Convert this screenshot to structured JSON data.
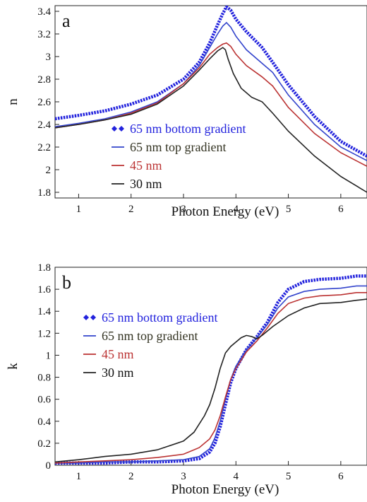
{
  "chart_data": [
    {
      "type": "line",
      "panel_label": "a",
      "xlabel": "Photon Energy (eV)",
      "ylabel": "n",
      "xlim": [
        0.55,
        6.5
      ],
      "ylim": [
        1.75,
        3.45
      ],
      "xticks": [
        1,
        2,
        3,
        4,
        5,
        6
      ],
      "yticks": [
        1.8,
        2,
        2.2,
        2.4,
        2.6,
        2.8,
        3,
        3.2,
        3.4
      ],
      "ytick_labels": [
        "1.8",
        "2",
        "2.2",
        "2.4",
        "2.6",
        "2.8",
        "3",
        "3.2",
        "3.4"
      ],
      "xtick_labels": [
        "1",
        "2",
        "3",
        "4",
        "5",
        "6"
      ],
      "legend_position": "lower-left",
      "grid": false,
      "series": [
        {
          "name": "65 nm bottom gradient",
          "color": "#2222dd",
          "style": "dotted-markers",
          "x": [
            0.55,
            1,
            1.5,
            2,
            2.5,
            3,
            3.3,
            3.5,
            3.65,
            3.75,
            3.82,
            3.9,
            4.0,
            4.2,
            4.5,
            4.7,
            5.0,
            5.5,
            6.0,
            6.5
          ],
          "y": [
            2.45,
            2.48,
            2.52,
            2.58,
            2.66,
            2.8,
            2.95,
            3.12,
            3.28,
            3.38,
            3.44,
            3.41,
            3.33,
            3.22,
            3.08,
            2.95,
            2.75,
            2.47,
            2.25,
            2.12
          ]
        },
        {
          "name": "65 nm top gradient",
          "color": "#3344cc",
          "style": "solid",
          "x": [
            0.55,
            1,
            1.5,
            2,
            2.5,
            3,
            3.3,
            3.5,
            3.65,
            3.75,
            3.82,
            3.9,
            4.0,
            4.2,
            4.5,
            4.7,
            5.0,
            5.5,
            6.0,
            6.5
          ],
          "y": [
            2.38,
            2.41,
            2.45,
            2.51,
            2.6,
            2.76,
            2.92,
            3.08,
            3.2,
            3.27,
            3.3,
            3.26,
            3.18,
            3.06,
            2.94,
            2.86,
            2.66,
            2.4,
            2.2,
            2.08
          ]
        },
        {
          "name": "45 nm",
          "color": "#bb3333",
          "style": "solid",
          "x": [
            0.55,
            1,
            1.5,
            2,
            2.5,
            3,
            3.3,
            3.5,
            3.65,
            3.75,
            3.82,
            3.9,
            4.0,
            4.2,
            4.5,
            4.7,
            5.0,
            5.5,
            6.0,
            6.5
          ],
          "y": [
            2.37,
            2.4,
            2.44,
            2.5,
            2.59,
            2.76,
            2.9,
            3.02,
            3.08,
            3.11,
            3.12,
            3.09,
            3.02,
            2.92,
            2.82,
            2.74,
            2.55,
            2.32,
            2.15,
            2.03
          ]
        },
        {
          "name": "30 nm",
          "color": "#222222",
          "style": "solid",
          "x": [
            0.55,
            1,
            1.5,
            2,
            2.5,
            3,
            3.3,
            3.5,
            3.65,
            3.75,
            3.8,
            3.85,
            3.95,
            4.1,
            4.3,
            4.5,
            4.7,
            5.0,
            5.5,
            6.0,
            6.5
          ],
          "y": [
            2.37,
            2.4,
            2.44,
            2.49,
            2.58,
            2.74,
            2.88,
            2.98,
            3.05,
            3.08,
            3.06,
            2.98,
            2.85,
            2.72,
            2.64,
            2.6,
            2.5,
            2.34,
            2.12,
            1.94,
            1.8
          ]
        }
      ]
    },
    {
      "type": "line",
      "panel_label": "b",
      "xlabel": "Photon Energy (eV)",
      "ylabel": "k",
      "xlim": [
        0.55,
        6.5
      ],
      "ylim": [
        0,
        1.8
      ],
      "xticks": [
        1,
        2,
        3,
        4,
        5,
        6
      ],
      "yticks": [
        0,
        0.2,
        0.4,
        0.6,
        0.8,
        1,
        1.2,
        1.4,
        1.6,
        1.8
      ],
      "ytick_labels": [
        "0",
        "0.2",
        "0.4",
        "0.6",
        "0.8",
        "1",
        "1.2",
        "1.4",
        "1.6",
        "1.8"
      ],
      "xtick_labels": [
        "1",
        "2",
        "3",
        "4",
        "5",
        "6"
      ],
      "legend_position": "upper-left",
      "grid": false,
      "series": [
        {
          "name": "65 nm bottom gradient",
          "color": "#2222dd",
          "style": "dotted-markers",
          "x": [
            0.55,
            1,
            1.5,
            2,
            2.5,
            3,
            3.3,
            3.5,
            3.6,
            3.7,
            3.8,
            3.9,
            4.0,
            4.2,
            4.4,
            4.6,
            4.8,
            5.0,
            5.3,
            5.6,
            6.0,
            6.3,
            6.5
          ],
          "y": [
            0.02,
            0.02,
            0.02,
            0.03,
            0.03,
            0.04,
            0.06,
            0.12,
            0.2,
            0.35,
            0.55,
            0.75,
            0.88,
            1.05,
            1.17,
            1.3,
            1.48,
            1.6,
            1.67,
            1.69,
            1.7,
            1.72,
            1.72
          ]
        },
        {
          "name": "65 nm top gradient",
          "color": "#3344cc",
          "style": "solid",
          "x": [
            0.55,
            1,
            1.5,
            2,
            2.5,
            3,
            3.3,
            3.5,
            3.6,
            3.7,
            3.8,
            3.9,
            4.0,
            4.2,
            4.4,
            4.6,
            4.8,
            5.0,
            5.3,
            5.6,
            6.0,
            6.3,
            6.5
          ],
          "y": [
            0.02,
            0.02,
            0.03,
            0.03,
            0.04,
            0.05,
            0.08,
            0.15,
            0.25,
            0.4,
            0.6,
            0.78,
            0.9,
            1.05,
            1.16,
            1.28,
            1.43,
            1.53,
            1.58,
            1.6,
            1.61,
            1.63,
            1.63
          ]
        },
        {
          "name": "45 nm",
          "color": "#bb3333",
          "style": "solid",
          "x": [
            0.55,
            1,
            1.5,
            2,
            2.5,
            3,
            3.3,
            3.5,
            3.6,
            3.7,
            3.8,
            3.9,
            4.0,
            4.2,
            4.4,
            4.6,
            4.8,
            5.0,
            5.3,
            5.6,
            6.0,
            6.3,
            6.5
          ],
          "y": [
            0.02,
            0.03,
            0.04,
            0.05,
            0.07,
            0.1,
            0.16,
            0.24,
            0.32,
            0.45,
            0.62,
            0.78,
            0.88,
            1.03,
            1.13,
            1.25,
            1.38,
            1.47,
            1.52,
            1.54,
            1.55,
            1.57,
            1.57
          ]
        },
        {
          "name": "30 nm",
          "color": "#222222",
          "style": "solid",
          "x": [
            0.55,
            1,
            1.5,
            2,
            2.5,
            3,
            3.2,
            3.4,
            3.5,
            3.6,
            3.7,
            3.8,
            3.9,
            4.0,
            4.1,
            4.2,
            4.3,
            4.4,
            4.5,
            4.7,
            5.0,
            5.3,
            5.6,
            6.0,
            6.3,
            6.5
          ],
          "y": [
            0.03,
            0.05,
            0.08,
            0.1,
            0.14,
            0.22,
            0.3,
            0.45,
            0.55,
            0.7,
            0.88,
            1.02,
            1.08,
            1.12,
            1.16,
            1.18,
            1.17,
            1.15,
            1.18,
            1.26,
            1.36,
            1.43,
            1.47,
            1.48,
            1.5,
            1.51
          ]
        }
      ]
    }
  ]
}
